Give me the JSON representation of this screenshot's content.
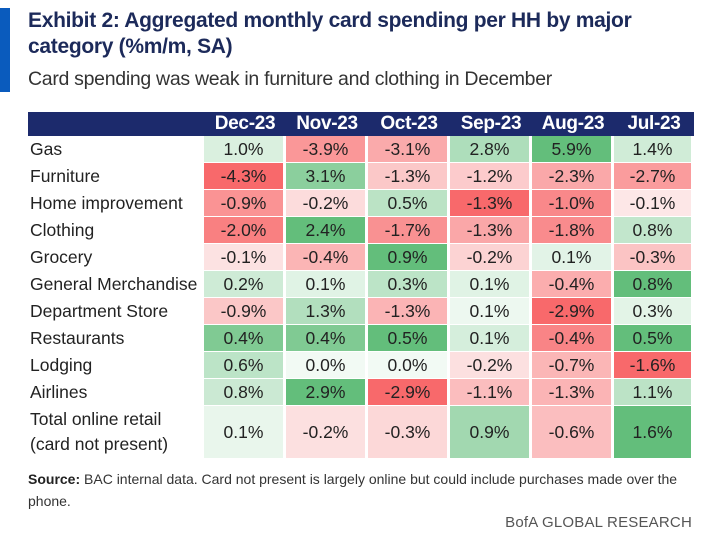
{
  "title": "Exhibit 2: Aggregated monthly card spending per HH by major category (%m/m, SA)",
  "subtitle": "Card spending was weak in furniture and clothing in December",
  "source_label": "Source:",
  "source_text": "BAC internal data. Card not present is largely online but could include purchases made over the phone.",
  "brand": "BofA GLOBAL RESEARCH",
  "colors": {
    "header_bg": "#1c2a6c",
    "title": "#1c2a5a",
    "accent": "#0a5bbd",
    "positive": "#63be7b",
    "negative": "#f8696b"
  },
  "chart_data": {
    "type": "table",
    "columns": [
      "Dec-23",
      "Nov-23",
      "Oct-23",
      "Sep-23",
      "Aug-23",
      "Jul-23"
    ],
    "rows": [
      {
        "category": "Gas",
        "values": [
          "1.0%",
          "-3.9%",
          "-3.1%",
          "2.8%",
          "5.9%",
          "1.4%"
        ]
      },
      {
        "category": "Furniture",
        "values": [
          "-4.3%",
          "3.1%",
          "-1.3%",
          "-1.2%",
          "-2.3%",
          "-2.7%"
        ]
      },
      {
        "category": "Home improvement",
        "values": [
          "-0.9%",
          "-0.2%",
          "0.5%",
          "-1.3%",
          "-1.0%",
          "-0.1%"
        ]
      },
      {
        "category": "Clothing",
        "values": [
          "-2.0%",
          "2.4%",
          "-1.7%",
          "-1.3%",
          "-1.8%",
          "0.8%"
        ]
      },
      {
        "category": "Grocery",
        "values": [
          "-0.1%",
          "-0.4%",
          "0.9%",
          "-0.2%",
          "0.1%",
          "-0.3%"
        ]
      },
      {
        "category": "General Merchandise",
        "values": [
          "0.2%",
          "0.1%",
          "0.3%",
          "0.1%",
          "-0.4%",
          "0.8%"
        ]
      },
      {
        "category": "Department Store",
        "values": [
          "-0.9%",
          "1.3%",
          "-1.3%",
          "0.1%",
          "-2.9%",
          "0.3%"
        ]
      },
      {
        "category": "Restaurants",
        "values": [
          "0.4%",
          "0.4%",
          "0.5%",
          "0.1%",
          "-0.4%",
          "0.5%"
        ]
      },
      {
        "category": "Lodging",
        "values": [
          "0.6%",
          "0.0%",
          "0.0%",
          "-0.2%",
          "-0.7%",
          "-1.6%"
        ]
      },
      {
        "category": "Airlines",
        "values": [
          "0.8%",
          "2.9%",
          "-2.9%",
          "-1.1%",
          "-1.3%",
          "1.1%"
        ]
      },
      {
        "category": "Total online retail (card not present)",
        "values": [
          "0.1%",
          "-0.2%",
          "-0.3%",
          "0.9%",
          "-0.6%",
          "1.6%"
        ]
      }
    ]
  }
}
